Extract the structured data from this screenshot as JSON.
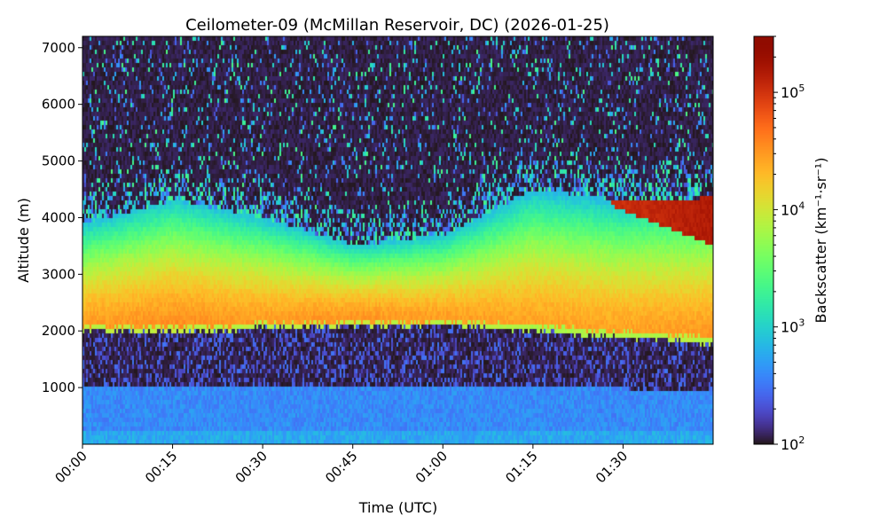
{
  "chart_data": {
    "type": "heatmap",
    "title": "Ceilometer-09 (McMillan Reservoir, DC) (2026-01-25)",
    "xlabel": "Time (UTC)",
    "ylabel": "Altitude (m)",
    "colorbar_label": "Backscatter (km⁻¹·sr⁻¹)",
    "xlim": [
      "00:00",
      "01:45"
    ],
    "ylim": [
      0,
      7200
    ],
    "x_ticks": [
      "00:00",
      "00:15",
      "00:30",
      "00:45",
      "01:00",
      "01:15",
      "01:30"
    ],
    "y_ticks": [
      1000,
      2000,
      3000,
      4000,
      5000,
      6000,
      7000
    ],
    "color_scale": "log",
    "colormap": "turbo",
    "clim": [
      100,
      300000
    ],
    "colorbar_ticks": [
      {
        "value": 100,
        "base": "10",
        "exp": "2"
      },
      {
        "value": 1000,
        "base": "10",
        "exp": "3"
      },
      {
        "value": 10000,
        "base": "10",
        "exp": "4"
      },
      {
        "value": 100000,
        "base": "10",
        "exp": "5"
      }
    ],
    "grid": false,
    "features": {
      "times": [
        "00:00",
        "00:15",
        "00:30",
        "00:45",
        "01:00",
        "01:15",
        "01:30",
        "01:45"
      ],
      "boundary_layer_top_m": [
        1000,
        1000,
        1000,
        1000,
        1050,
        1000,
        980,
        950
      ],
      "boundary_layer_backscatter": 400,
      "aerosol_layer_base_m": [
        2000,
        1980,
        2050,
        2100,
        2100,
        2000,
        1880,
        1780
      ],
      "aerosol_layer_top_m": [
        3900,
        4300,
        4000,
        3500,
        3700,
        4500,
        4300,
        4300
      ],
      "aerosol_layer_peak_backscatter": [
        30000,
        35000,
        30000,
        35000,
        30000,
        28000,
        28000,
        32000
      ],
      "elevated_plume": {
        "start": "01:28",
        "end": "01:45",
        "base_m": [
          4200,
          3500
        ],
        "top_m": [
          4300,
          4350
        ],
        "peak_backscatter": 150000
      }
    }
  }
}
